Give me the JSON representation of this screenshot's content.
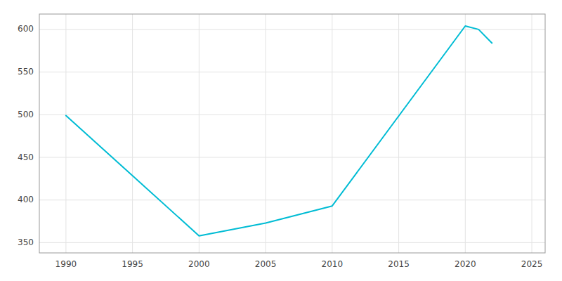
{
  "chart_data": {
    "type": "line",
    "x": [
      1990,
      2000,
      2005,
      2010,
      2020,
      2021,
      2022
    ],
    "values": [
      499,
      358,
      373,
      393,
      604,
      600,
      584
    ],
    "color": "#00BCD4",
    "xlim": [
      1988,
      2026
    ],
    "ylim": [
      338,
      618
    ],
    "xticks": [
      1990,
      1995,
      2000,
      2005,
      2010,
      2015,
      2020,
      2025
    ],
    "yticks": [
      350,
      400,
      450,
      500,
      550,
      600
    ],
    "grid": true
  }
}
